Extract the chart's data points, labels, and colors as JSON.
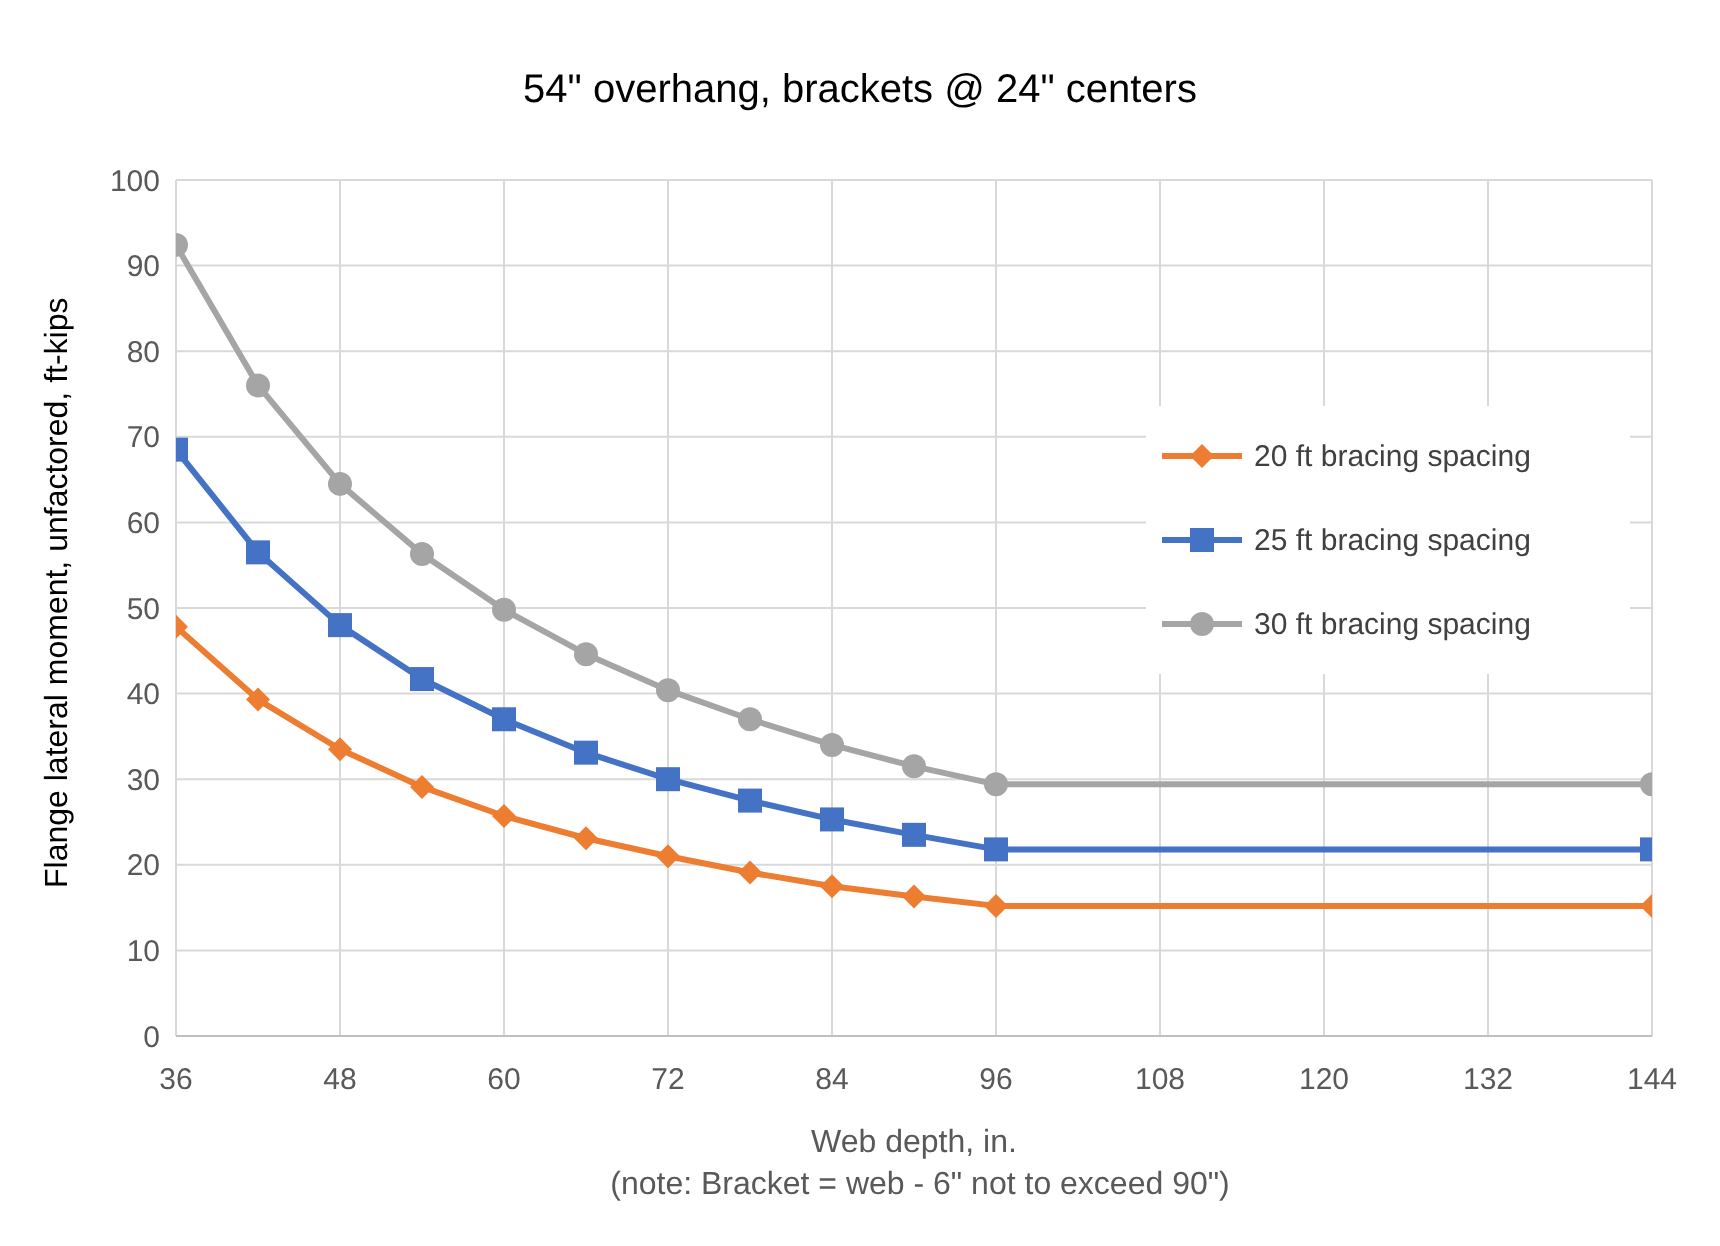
{
  "chart_data": {
    "type": "line",
    "title": "54\" overhang, brackets @ 24\" centers",
    "xlabel": "Web depth, in.",
    "ylabel": "Flange lateral moment, unfactored, ft-kips",
    "annotations": [
      "(note: Bracket = web - 6\" not to exceed 90\")"
    ],
    "x": [
      36,
      42,
      48,
      54,
      60,
      66,
      72,
      78,
      84,
      90,
      96,
      144
    ],
    "series": [
      {
        "name": "20 ft bracing spacing",
        "color": "#ed7d31",
        "marker": "diamond",
        "values": [
          47.8,
          39.3,
          33.5,
          29.1,
          25.7,
          23.1,
          21,
          19.1,
          17.5,
          16.3,
          15.2,
          15.2
        ]
      },
      {
        "name": "25 ft bracing spacing",
        "color": "#4472c4",
        "marker": "square",
        "values": [
          68.5,
          56.5,
          48,
          41.7,
          37,
          33.1,
          30,
          27.5,
          25.3,
          23.5,
          21.8,
          21.8
        ]
      },
      {
        "name": "30 ft bracing spacing",
        "color": "#a5a5a5",
        "marker": "circle",
        "values": [
          92.4,
          76,
          64.5,
          56.3,
          49.8,
          44.6,
          40.4,
          37,
          34,
          31.5,
          29.4,
          29.4
        ]
      }
    ],
    "xlim": [
      36,
      144
    ],
    "xticks": [
      36,
      48,
      60,
      72,
      84,
      96,
      108,
      120,
      132,
      144
    ],
    "ylim": [
      0,
      100
    ],
    "yticks": [
      0,
      10,
      20,
      30,
      40,
      50,
      60,
      70,
      80,
      90,
      100
    ],
    "grid": true,
    "legend": "right",
    "line_style": "solid"
  }
}
